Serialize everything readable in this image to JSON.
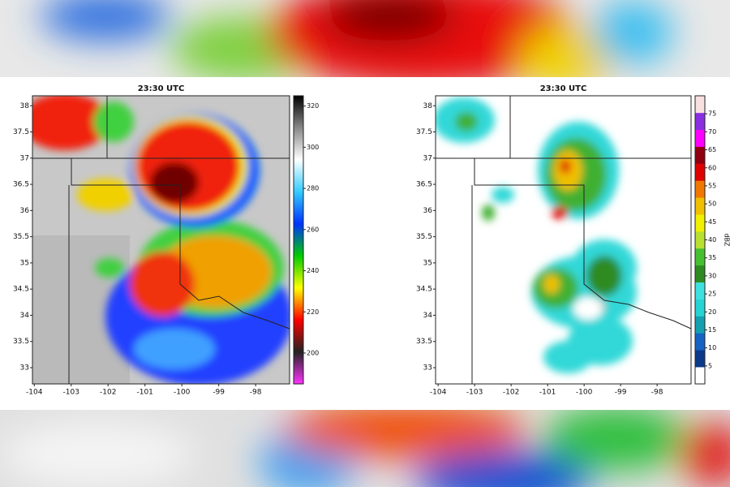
{
  "panels": [
    {
      "title": "23:30 UTC",
      "xlim": [
        -104.05,
        -97.08
      ],
      "xticks": [
        -104,
        -103,
        -102,
        -101,
        -100,
        -99,
        -98
      ],
      "ylim": [
        32.69,
        38.19
      ],
      "yticks": [
        33,
        33.5,
        34,
        34.5,
        35,
        35.5,
        36,
        36.5,
        37,
        37.5,
        38
      ],
      "colorbar": {
        "lim": [
          185,
          325
        ],
        "ticks": [
          200,
          220,
          240,
          260,
          280,
          300,
          320
        ],
        "scale": "continuous",
        "stops": [
          "#ff33ff",
          "#222222",
          "#ff0000",
          "#ffff00",
          "#00cc00",
          "#0033ff",
          "#33ccff",
          "#ffffff",
          "#888888",
          "#000000"
        ]
      }
    },
    {
      "title": "23:30 UTC",
      "xlim": [
        -104.07,
        -97.07
      ],
      "xticks": [
        -104,
        -103,
        -102,
        -101,
        -100,
        -99,
        -98
      ],
      "ylim": [
        32.69,
        38.19
      ],
      "yticks": [
        33,
        33.5,
        34,
        34.5,
        35,
        35.5,
        36,
        36.5,
        37,
        37.5,
        38
      ],
      "colorbar": {
        "lim": [
          0,
          80
        ],
        "ticks": [
          5,
          10,
          15,
          20,
          25,
          30,
          35,
          40,
          45,
          50,
          55,
          60,
          65,
          70,
          75
        ],
        "label": "dBZ",
        "scale": "discrete",
        "colors": [
          "#ffffff",
          "#0b3a8a",
          "#1663c4",
          "#14a0b0",
          "#26d4d4",
          "#3fe0e0",
          "#2e8b22",
          "#46c030",
          "#b8e030",
          "#f0f000",
          "#f0c000",
          "#f07800",
          "#e00000",
          "#900010",
          "#ff00ff",
          "#8a30e0",
          "#f8e0e0"
        ]
      }
    }
  ]
}
